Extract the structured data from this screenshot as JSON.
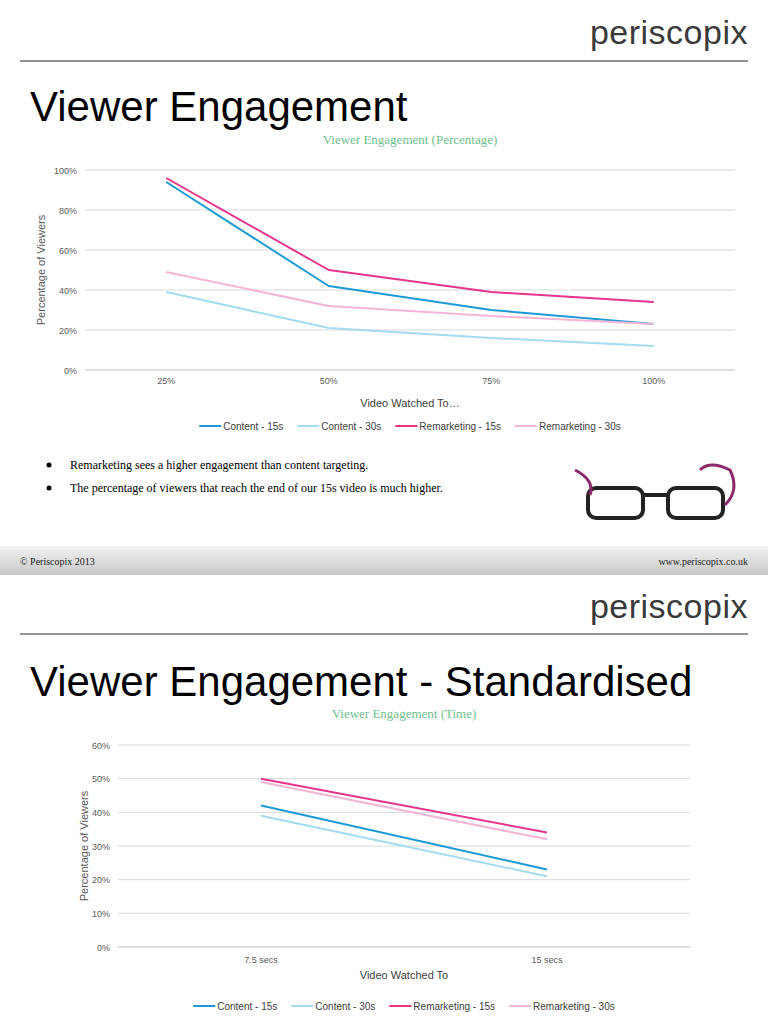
{
  "chart_data": [
    {
      "type": "line",
      "title": "Viewer Engagement (Percentage)",
      "x_label": "Video Watched To…",
      "y_label": "Percentage of Viewers",
      "categories": [
        "25%",
        "50%",
        "75%",
        "100%"
      ],
      "ylim": [
        0,
        100
      ],
      "yticks": [
        {
          "value": 0,
          "label": "0%"
        },
        {
          "value": 20,
          "label": "20%"
        },
        {
          "value": 40,
          "label": "40%"
        },
        {
          "value": 60,
          "label": "60%"
        },
        {
          "value": 80,
          "label": "80%"
        },
        {
          "value": 100,
          "label": "100%"
        }
      ],
      "grid": true,
      "legend": "bottom",
      "series": [
        {
          "name": "Content - 15s",
          "color": "#1d9ad6",
          "values": [
            94,
            42,
            30,
            23
          ]
        },
        {
          "name": "Content - 30s",
          "color": "#a3dbf0",
          "values": [
            39,
            21,
            16,
            12
          ]
        },
        {
          "name": "Remarketing - 15s",
          "color": "#e5358c",
          "values": [
            96,
            50,
            39,
            34
          ]
        },
        {
          "name": "Remarketing - 30s",
          "color": "#f5b5d4",
          "values": [
            49,
            32,
            27,
            23
          ]
        }
      ]
    },
    {
      "type": "line",
      "title": "Viewer Engagement (Time)",
      "x_label": "Video Watched To",
      "y_label": "Percentage of Viewers",
      "categories": [
        "7.5 secs",
        "15 secs"
      ],
      "ylim": [
        0,
        60
      ],
      "yticks": [
        {
          "value": 0,
          "label": "0%"
        },
        {
          "value": 10,
          "label": "10%"
        },
        {
          "value": 20,
          "label": "20%"
        },
        {
          "value": 30,
          "label": "30%"
        },
        {
          "value": 40,
          "label": "40%"
        },
        {
          "value": 50,
          "label": "50%"
        },
        {
          "value": 60,
          "label": "60%"
        }
      ],
      "grid": true,
      "legend": "bottom",
      "series": [
        {
          "name": "Content - 15s",
          "color": "#1d9ad6",
          "values": [
            42,
            23
          ]
        },
        {
          "name": "Content - 30s",
          "color": "#a3dbf0",
          "values": [
            39,
            21
          ]
        },
        {
          "name": "Remarketing - 15s",
          "color": "#e5358c",
          "values": [
            50,
            34
          ]
        },
        {
          "name": "Remarketing - 30s",
          "color": "#f5b5d4",
          "values": [
            49,
            32
          ]
        }
      ]
    }
  ],
  "slides": [
    {
      "brand": "periscopix",
      "heading": "Viewer Engagement",
      "bullets": [
        "Remarketing sees a higher engagement than content targeting.",
        "The percentage of viewers that reach the end of our 15s video is much higher."
      ],
      "footer_left": "© Periscopix 2013",
      "footer_right": "www.periscopix.co.uk"
    },
    {
      "brand": "periscopix",
      "heading": "Viewer Engagement - Standardised"
    }
  ]
}
